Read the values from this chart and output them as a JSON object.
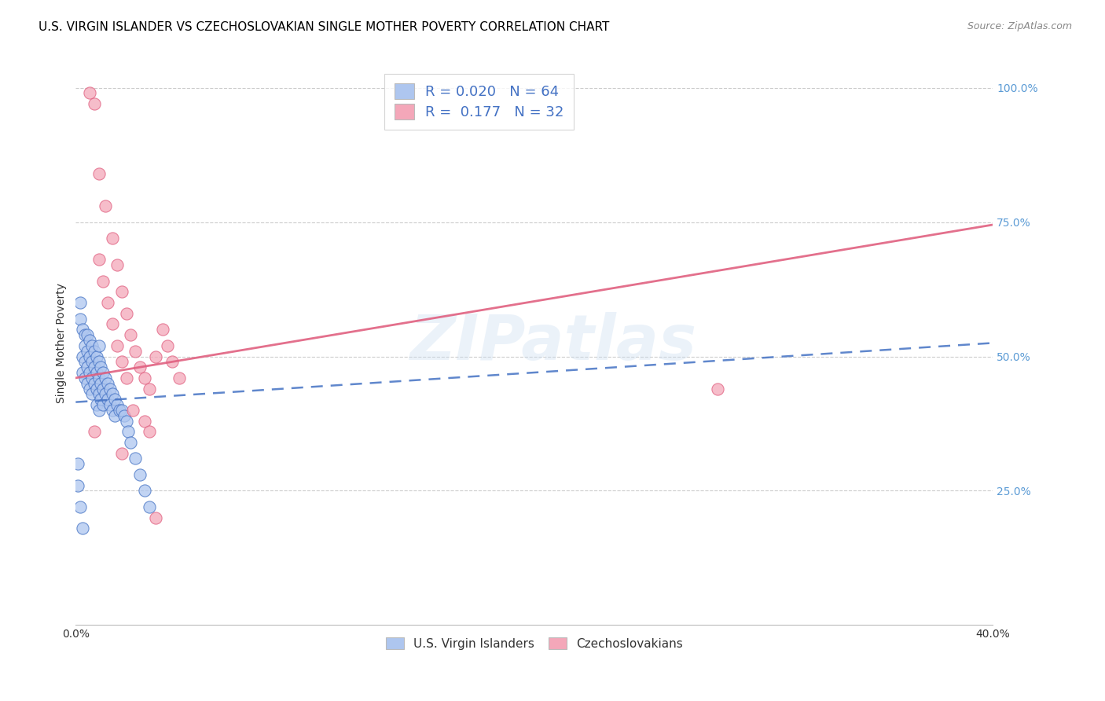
{
  "title": "U.S. VIRGIN ISLANDER VS CZECHOSLOVAKIAN SINGLE MOTHER POVERTY CORRELATION CHART",
  "source": "Source: ZipAtlas.com",
  "ylabel": "Single Mother Poverty",
  "watermark": "ZIPatlas",
  "xmin": 0.0,
  "xmax": 0.4,
  "ymin": 0.0,
  "ymax": 1.05,
  "xticks": [
    0.0,
    0.1,
    0.2,
    0.3,
    0.4
  ],
  "xticklabels": [
    "0.0%",
    "",
    "",
    "",
    "40.0%"
  ],
  "yticks_right": [
    0.25,
    0.5,
    0.75,
    1.0
  ],
  "ytick_labels_right": [
    "25.0%",
    "50.0%",
    "75.0%",
    "100.0%"
  ],
  "blue_color": "#aec6ef",
  "pink_color": "#f4a7b9",
  "blue_line_color": "#4472c4",
  "pink_line_color": "#e06080",
  "right_axis_color": "#5b9bd5",
  "legend_R_blue": "0.020",
  "legend_N_blue": "64",
  "legend_R_pink": "0.177",
  "legend_N_pink": "32",
  "blue_scatter_x": [
    0.002,
    0.002,
    0.003,
    0.003,
    0.003,
    0.004,
    0.004,
    0.004,
    0.004,
    0.005,
    0.005,
    0.005,
    0.005,
    0.006,
    0.006,
    0.006,
    0.006,
    0.007,
    0.007,
    0.007,
    0.007,
    0.008,
    0.008,
    0.008,
    0.009,
    0.009,
    0.009,
    0.009,
    0.01,
    0.01,
    0.01,
    0.01,
    0.01,
    0.011,
    0.011,
    0.011,
    0.012,
    0.012,
    0.012,
    0.013,
    0.013,
    0.014,
    0.014,
    0.015,
    0.015,
    0.016,
    0.016,
    0.017,
    0.017,
    0.018,
    0.019,
    0.02,
    0.021,
    0.001,
    0.001,
    0.002,
    0.003,
    0.022,
    0.023,
    0.024,
    0.026,
    0.028,
    0.03,
    0.032
  ],
  "blue_scatter_y": [
    0.6,
    0.57,
    0.55,
    0.5,
    0.47,
    0.54,
    0.52,
    0.49,
    0.46,
    0.54,
    0.51,
    0.48,
    0.45,
    0.53,
    0.5,
    0.47,
    0.44,
    0.52,
    0.49,
    0.46,
    0.43,
    0.51,
    0.48,
    0.45,
    0.5,
    0.47,
    0.44,
    0.41,
    0.52,
    0.49,
    0.46,
    0.43,
    0.4,
    0.48,
    0.45,
    0.42,
    0.47,
    0.44,
    0.41,
    0.46,
    0.43,
    0.45,
    0.42,
    0.44,
    0.41,
    0.43,
    0.4,
    0.42,
    0.39,
    0.41,
    0.4,
    0.4,
    0.39,
    0.3,
    0.26,
    0.22,
    0.18,
    0.38,
    0.36,
    0.34,
    0.31,
    0.28,
    0.25,
    0.22
  ],
  "pink_scatter_x": [
    0.006,
    0.008,
    0.01,
    0.013,
    0.016,
    0.018,
    0.02,
    0.022,
    0.024,
    0.026,
    0.028,
    0.03,
    0.032,
    0.035,
    0.038,
    0.04,
    0.042,
    0.045,
    0.01,
    0.012,
    0.014,
    0.016,
    0.018,
    0.02,
    0.022,
    0.025,
    0.03,
    0.032,
    0.035,
    0.28,
    0.008,
    0.02
  ],
  "pink_scatter_y": [
    0.99,
    0.97,
    0.84,
    0.78,
    0.72,
    0.67,
    0.62,
    0.58,
    0.54,
    0.51,
    0.48,
    0.46,
    0.44,
    0.5,
    0.55,
    0.52,
    0.49,
    0.46,
    0.68,
    0.64,
    0.6,
    0.56,
    0.52,
    0.49,
    0.46,
    0.4,
    0.38,
    0.36,
    0.2,
    0.44,
    0.36,
    0.32
  ],
  "blue_trend_x": [
    0.0,
    0.4
  ],
  "blue_trend_y": [
    0.415,
    0.525
  ],
  "pink_trend_x": [
    0.0,
    0.4
  ],
  "pink_trend_y": [
    0.46,
    0.745
  ],
  "background_color": "#ffffff",
  "grid_color": "#cccccc",
  "title_fontsize": 11,
  "axis_label_fontsize": 10,
  "tick_fontsize": 10
}
